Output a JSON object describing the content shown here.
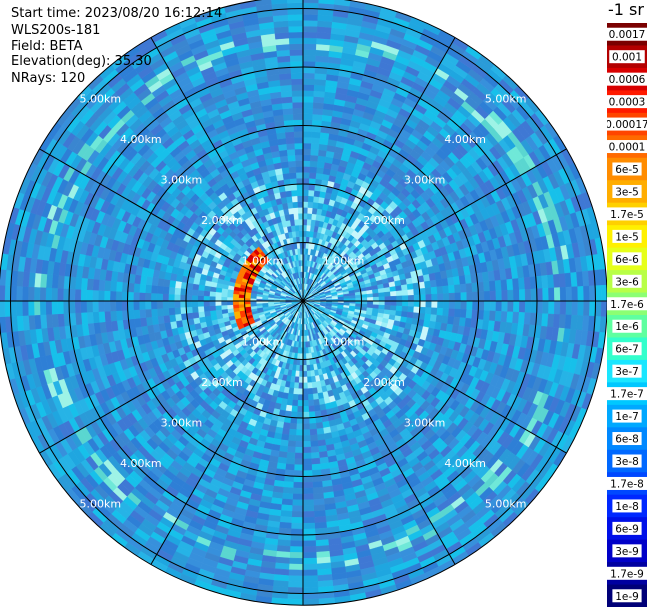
{
  "info": {
    "start_time_label": "Start time: 2023/08/20 16:12:14",
    "instrument": "WLS200s-181",
    "field_label": "Field: BETA",
    "elevation_label": "Elevation(deg): 35.30",
    "nrays_label": "NRays: 120"
  },
  "colorbar": {
    "unit_label": "-1 sr",
    "ticks": [
      "0.0017",
      "0.001",
      "0.0006",
      "0.0003",
      "0.00017",
      "0.0001",
      "6e-5",
      "3e-5",
      "1.7e-5",
      "1e-5",
      "6e-6",
      "3e-6",
      "1.7e-6",
      "1e-6",
      "6e-7",
      "3e-7",
      "1.7e-7",
      "1e-7",
      "6e-8",
      "3e-8",
      "1.7e-8",
      "1e-8",
      "6e-9",
      "3e-9",
      "1.7e-9",
      "1e-9"
    ],
    "colors": [
      "#7a0000",
      "#b30000",
      "#d80000",
      "#ff1a00",
      "#ff4500",
      "#ff6a00",
      "#ff8c00",
      "#ffad00",
      "#ffd000",
      "#fff000",
      "#e6ff1a",
      "#b8ff47",
      "#8cff73",
      "#5fffa0",
      "#33ffcc",
      "#1ae6ff",
      "#00c8ff",
      "#00a8ff",
      "#0088ff",
      "#0068ff",
      "#0048ff",
      "#0028ff",
      "#0010e8",
      "#0000c8",
      "#0000a0",
      "#000078"
    ]
  },
  "chart_data": {
    "type": "heatmap",
    "projection": "polar-ppi",
    "field": "BETA",
    "nrays": 120,
    "range_rings_km": [
      1,
      2,
      3,
      4,
      5
    ],
    "range_ring_labels": [
      "1.00km",
      "2.00km",
      "3.00km",
      "4.00km",
      "5.00km"
    ],
    "max_range_km": 5.2,
    "radial_lines_deg": [
      0,
      30,
      60,
      90,
      120,
      150,
      180,
      210,
      240,
      270,
      300,
      330
    ],
    "background_beta": "3e-8 to 1e-7",
    "near_range_beta": "1.7e-7 to 3e-7",
    "aerosol_arc": {
      "range_km": 1.05,
      "azimuth_deg": [
        245,
        320
      ],
      "beta": "1.7e-5 to 1e-4"
    },
    "elevated_ring": {
      "range_km": [
        4.3,
        4.6
      ],
      "beta": "1e-7 to 3e-7"
    }
  }
}
